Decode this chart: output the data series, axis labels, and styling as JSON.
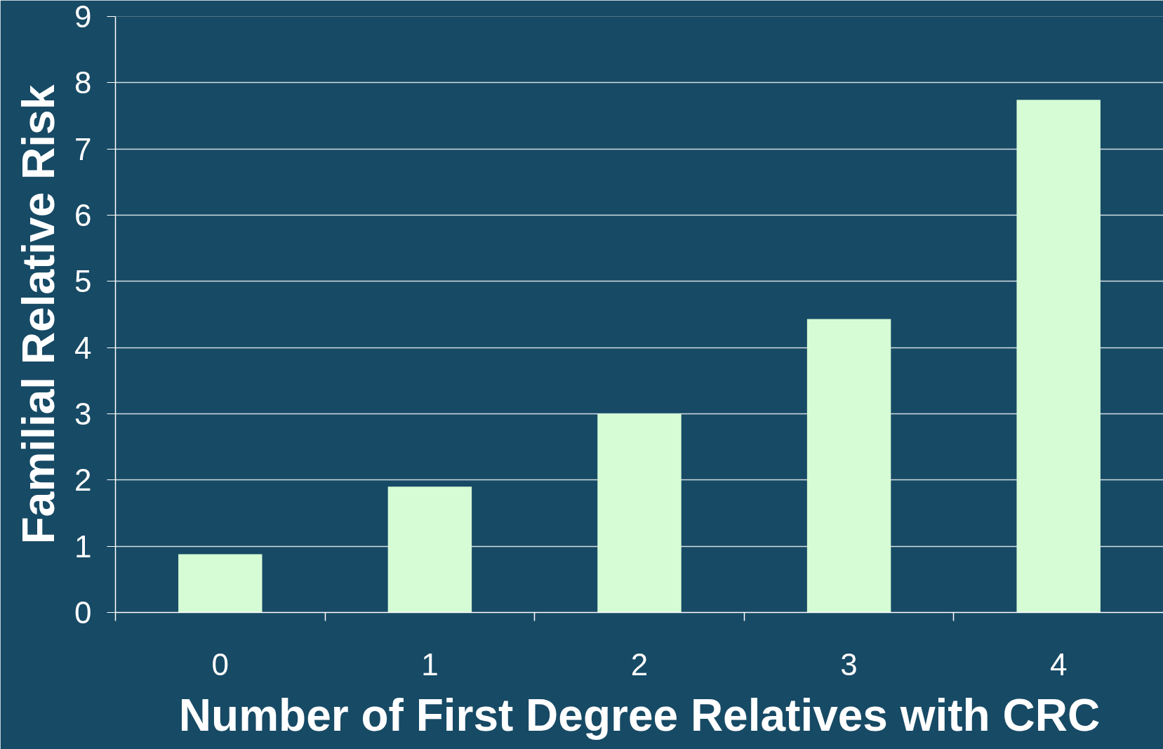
{
  "chart_data": {
    "type": "bar",
    "xlabel": "Number of First Degree Relatives with CRC",
    "ylabel": "Familial Relative Risk",
    "categories": [
      "0",
      "1",
      "2",
      "3",
      "4"
    ],
    "values": [
      0.88,
      1.9,
      3.0,
      4.43,
      7.74
    ],
    "color": "#d6fcd6",
    "ylim": [
      0,
      9
    ],
    "yticks": [
      0,
      1,
      2,
      3,
      4,
      5,
      6,
      7,
      8,
      9
    ],
    "grid": "y"
  }
}
